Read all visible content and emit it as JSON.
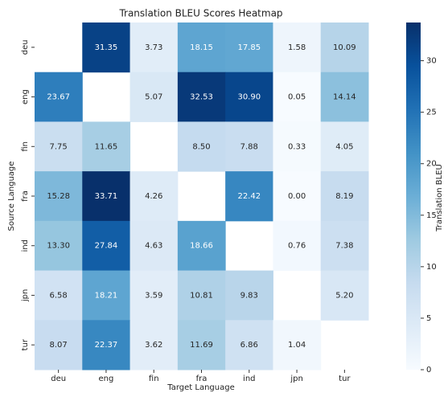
{
  "chart_data": {
    "type": "heatmap",
    "title": "Translation BLEU Scores Heatmap",
    "x_label": "Target Language",
    "y_label": "Source Language",
    "columns": [
      "deu",
      "eng",
      "fin",
      "fra",
      "ind",
      "jpn",
      "tur"
    ],
    "rows": [
      "deu",
      "eng",
      "fin",
      "fra",
      "ind",
      "jpn",
      "tur"
    ],
    "values": [
      [
        null,
        31.35,
        3.73,
        18.15,
        17.85,
        1.58,
        10.09
      ],
      [
        23.67,
        null,
        5.07,
        32.53,
        30.9,
        0.05,
        14.14
      ],
      [
        7.75,
        11.65,
        null,
        8.5,
        7.88,
        0.33,
        4.05
      ],
      [
        15.28,
        33.71,
        4.26,
        null,
        22.42,
        0,
        8.19
      ],
      [
        13.3,
        27.84,
        4.63,
        18.66,
        null,
        0.76,
        7.38
      ],
      [
        6.58,
        18.21,
        3.59,
        10.81,
        9.83,
        null,
        5.2
      ],
      [
        8.07,
        22.37,
        3.62,
        11.69,
        6.86,
        1.04,
        null
      ]
    ],
    "value_labels": [
      [
        null,
        "31.35",
        "3.73",
        "18.15",
        "17.85",
        "1.58",
        "10.09"
      ],
      [
        "23.67",
        null,
        "5.07",
        "32.53",
        "30.90",
        "0.05",
        "14.14"
      ],
      [
        "7.75",
        "11.65",
        null,
        "8.50",
        "7.88",
        "0.33",
        "4.05"
      ],
      [
        "15.28",
        "33.71",
        "4.26",
        null,
        "22.42",
        "0.00",
        "8.19"
      ],
      [
        "13.30",
        "27.84",
        "4.63",
        "18.66",
        null,
        "0.76",
        "7.38"
      ],
      [
        "6.58",
        "18.21",
        "3.59",
        "10.81",
        "9.83",
        null,
        "5.20"
      ],
      [
        "8.07",
        "22.37",
        "3.62",
        "11.69",
        "6.86",
        "1.04",
        null
      ]
    ],
    "colorbar_label": "Translation BLEU",
    "zlim": [
      0,
      33.71
    ],
    "zticks": [
      0,
      5,
      10,
      15,
      20,
      25,
      30
    ],
    "colormap": [
      "#f7fbff",
      "#deebf7",
      "#c6dbef",
      "#9ecae1",
      "#6baed6",
      "#4292c6",
      "#2171b5",
      "#08519c",
      "#08306b"
    ]
  }
}
